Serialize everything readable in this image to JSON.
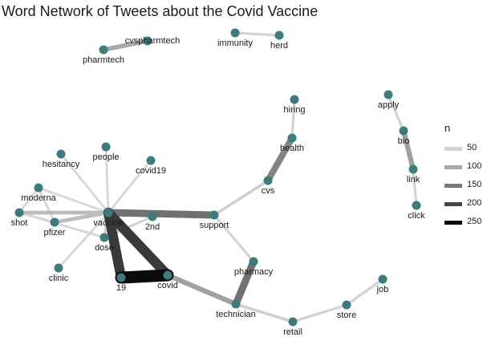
{
  "title": "Word Network of Tweets about the Covid Vaccine",
  "node_color": "#3e7b7d",
  "legend": {
    "title": "n",
    "items": [
      {
        "label": "50",
        "color": "#d4d4d4"
      },
      {
        "label": "100",
        "color": "#a8a8a8"
      },
      {
        "label": "150",
        "color": "#787878"
      },
      {
        "label": "200",
        "color": "#464646"
      },
      {
        "label": "250",
        "color": "#0a0a0a"
      }
    ]
  },
  "nodes": [
    {
      "id": "cvspharmtech",
      "label": "cvspharmtech"
    },
    {
      "id": "pharmtech",
      "label": "pharmtech"
    },
    {
      "id": "immunity",
      "label": "immunity"
    },
    {
      "id": "herd",
      "label": "herd"
    },
    {
      "id": "hiring",
      "label": "hiring"
    },
    {
      "id": "health",
      "label": "health"
    },
    {
      "id": "cvs",
      "label": "cvs"
    },
    {
      "id": "apply",
      "label": "apply"
    },
    {
      "id": "bio",
      "label": "bio"
    },
    {
      "id": "link",
      "label": "link"
    },
    {
      "id": "click",
      "label": "click"
    },
    {
      "id": "hesitancy",
      "label": "hesitancy"
    },
    {
      "id": "people",
      "label": "people"
    },
    {
      "id": "covid19",
      "label": "covid19"
    },
    {
      "id": "moderna",
      "label": "moderna"
    },
    {
      "id": "shot",
      "label": "shot"
    },
    {
      "id": "pfizer",
      "label": "pfizer"
    },
    {
      "id": "vaccine",
      "label": "vaccine"
    },
    {
      "id": "2nd",
      "label": "2nd"
    },
    {
      "id": "support",
      "label": "support"
    },
    {
      "id": "dose",
      "label": "dose"
    },
    {
      "id": "clinic",
      "label": "clinic"
    },
    {
      "id": "19",
      "label": "19"
    },
    {
      "id": "covid",
      "label": "covid"
    },
    {
      "id": "pharmacy",
      "label": "pharmacy"
    },
    {
      "id": "technician",
      "label": "technician"
    },
    {
      "id": "retail",
      "label": "retail"
    },
    {
      "id": "store",
      "label": "store"
    },
    {
      "id": "job",
      "label": "job"
    }
  ],
  "edges": [
    {
      "from": "pharmtech",
      "to": "cvspharmtech",
      "n": 90
    },
    {
      "from": "immunity",
      "to": "herd",
      "n": 45
    },
    {
      "from": "hiring",
      "to": "health",
      "n": 45
    },
    {
      "from": "health",
      "to": "cvs",
      "n": 130
    },
    {
      "from": "cvs",
      "to": "support",
      "n": 50
    },
    {
      "from": "apply",
      "to": "bio",
      "n": 45
    },
    {
      "from": "bio",
      "to": "link",
      "n": 100
    },
    {
      "from": "link",
      "to": "click",
      "n": 45
    },
    {
      "from": "hesitancy",
      "to": "vaccine",
      "n": 40
    },
    {
      "from": "people",
      "to": "vaccine",
      "n": 40
    },
    {
      "from": "covid19",
      "to": "vaccine",
      "n": 40
    },
    {
      "from": "moderna",
      "to": "vaccine",
      "n": 40
    },
    {
      "from": "shot",
      "to": "vaccine",
      "n": 70
    },
    {
      "from": "pfizer",
      "to": "vaccine",
      "n": 70
    },
    {
      "from": "moderna",
      "to": "shot",
      "n": 40
    },
    {
      "from": "moderna",
      "to": "pfizer",
      "n": 40
    },
    {
      "from": "shot",
      "to": "pfizer",
      "n": 40
    },
    {
      "from": "shot",
      "to": "dose",
      "n": 40
    },
    {
      "from": "vaccine",
      "to": "2nd",
      "n": 45
    },
    {
      "from": "2nd",
      "to": "dose",
      "n": 45
    },
    {
      "from": "vaccine",
      "to": "dose",
      "n": 50
    },
    {
      "from": "vaccine",
      "to": "clinic",
      "n": 40
    },
    {
      "from": "vaccine",
      "to": "support",
      "n": 150
    },
    {
      "from": "vaccine",
      "to": "19",
      "n": 210
    },
    {
      "from": "vaccine",
      "to": "covid",
      "n": 210
    },
    {
      "from": "19",
      "to": "covid",
      "n": 260
    },
    {
      "from": "covid",
      "to": "technician",
      "n": 100
    },
    {
      "from": "support",
      "to": "pharmacy",
      "n": 45
    },
    {
      "from": "pharmacy",
      "to": "technician",
      "n": 150
    },
    {
      "from": "technician",
      "to": "retail",
      "n": 50
    },
    {
      "from": "retail",
      "to": "store",
      "n": 45
    },
    {
      "from": "store",
      "to": "job",
      "n": 45
    }
  ]
}
